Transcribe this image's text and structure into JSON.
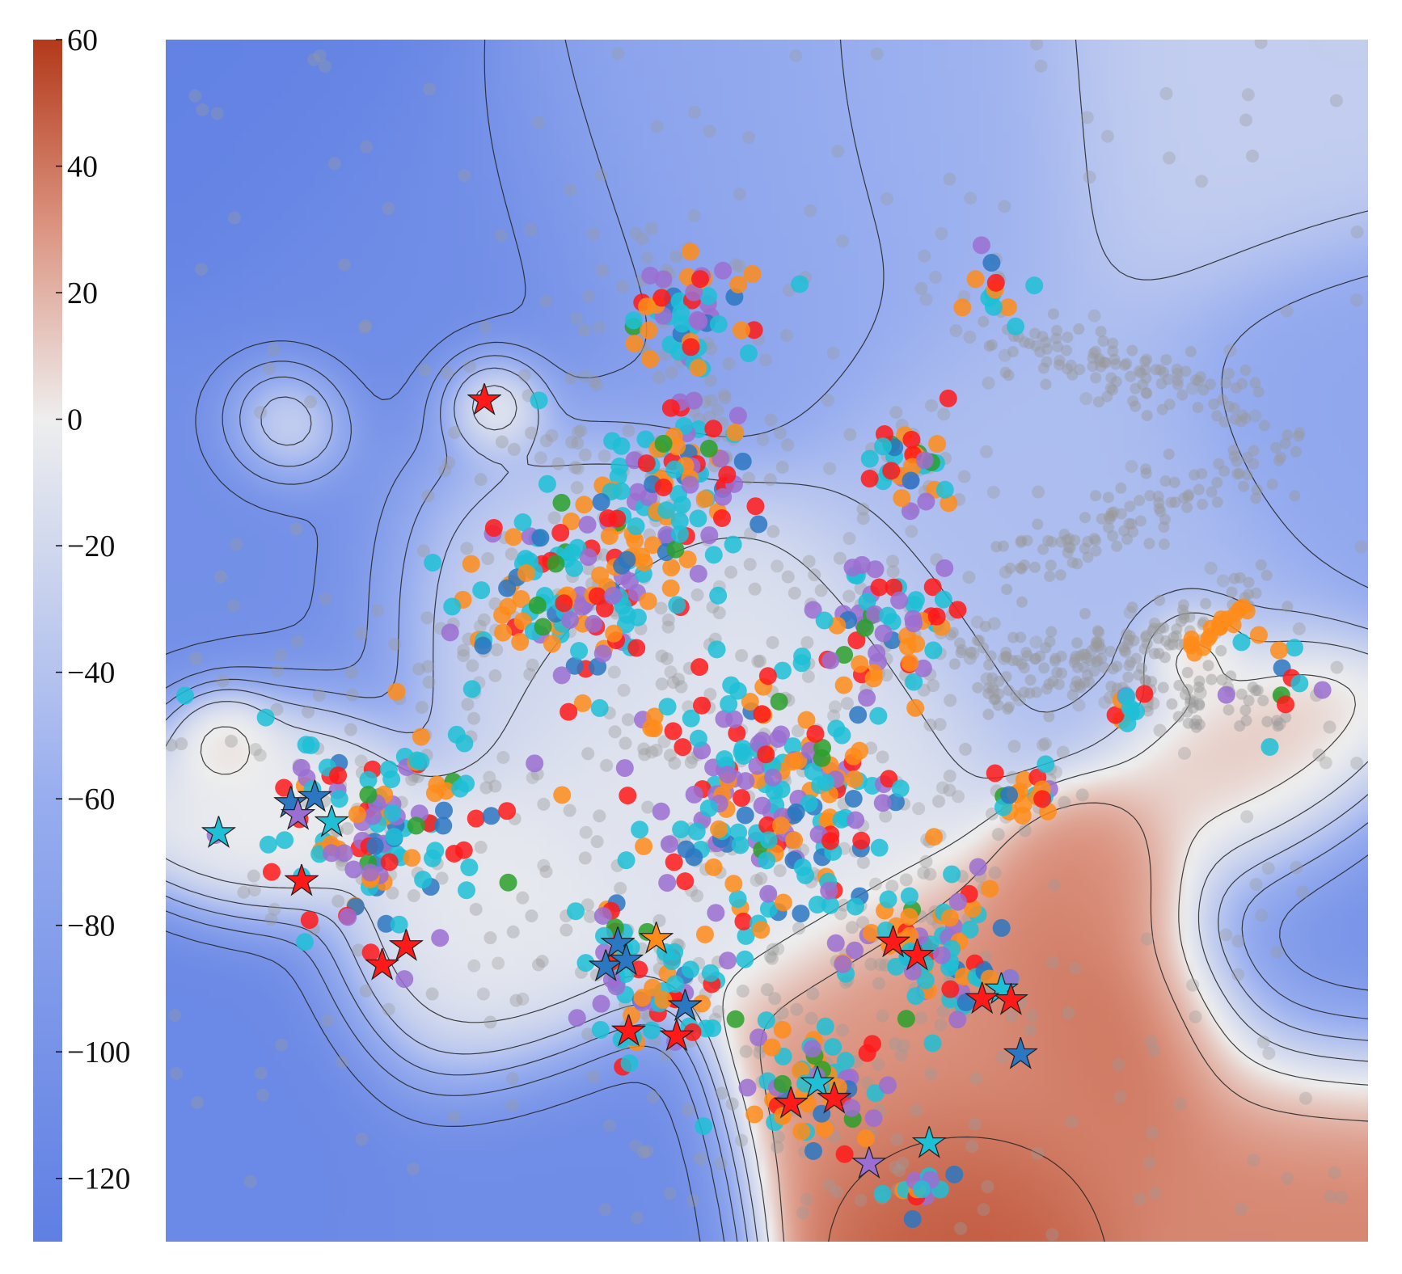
{
  "chart_data": {
    "type": "heatmap",
    "title": "",
    "xlabel": "",
    "ylabel": "",
    "colorbar": {
      "range": [
        -130,
        60
      ],
      "ticks": [
        60,
        40,
        20,
        0,
        -20,
        -40,
        -60,
        -80,
        -100,
        -120
      ],
      "tick_labels": [
        "60",
        "40",
        "20",
        "0",
        "−20",
        "−40",
        "−60",
        "−80",
        "−100",
        "−120"
      ],
      "colormap": [
        "#5f7fe3",
        "#97adef",
        "#eeeeee",
        "#dc9582",
        "#b3391a"
      ],
      "placement": "left"
    },
    "x_range": [
      0,
      100
    ],
    "y_range": [
      0,
      100
    ],
    "field_sources": [
      {
        "x": 3,
        "y": 97,
        "s": 14,
        "v": -125
      },
      {
        "x": 22,
        "y": 80,
        "s": 14,
        "v": -110
      },
      {
        "x": 6,
        "y": 60,
        "s": 12,
        "v": -105
      },
      {
        "x": 5,
        "y": 10,
        "s": 12,
        "v": -115
      },
      {
        "x": 30,
        "y": 3,
        "s": 10,
        "v": -110
      },
      {
        "x": 96,
        "y": 25,
        "s": 10,
        "v": -105
      },
      {
        "x": 97,
        "y": 70,
        "s": 10,
        "v": -70
      },
      {
        "x": 88,
        "y": 94,
        "s": 12,
        "v": -30
      },
      {
        "x": 45,
        "y": 88,
        "s": 14,
        "v": -70
      },
      {
        "x": 62,
        "y": 92,
        "s": 12,
        "v": -55
      },
      {
        "x": 75,
        "y": 60,
        "s": 14,
        "v": -45
      },
      {
        "x": 50,
        "y": 42,
        "s": 12,
        "v": -10
      },
      {
        "x": 30,
        "y": 58,
        "s": 10,
        "v": -20
      },
      {
        "x": 8,
        "y": 37,
        "s": 7,
        "v": 0
      },
      {
        "x": 25,
        "y": 23,
        "s": 8,
        "v": -5
      },
      {
        "x": 27,
        "y": 70,
        "s": 3.5,
        "v": 45
      },
      {
        "x": 10,
        "y": 68,
        "s": 4,
        "v": 30
      },
      {
        "x": 5,
        "y": 42,
        "s": 3,
        "v": 15
      },
      {
        "x": 68,
        "y": 12,
        "s": 12,
        "v": 30
      },
      {
        "x": 80,
        "y": 18,
        "s": 9,
        "v": 45
      },
      {
        "x": 95,
        "y": 8,
        "s": 10,
        "v": 35
      },
      {
        "x": 90,
        "y": 38,
        "s": 8,
        "v": 20
      },
      {
        "x": 78,
        "y": 30,
        "s": 6,
        "v": 35
      },
      {
        "x": 85,
        "y": 49,
        "s": 3,
        "v": 15
      },
      {
        "x": 67,
        "y": 3,
        "s": 8,
        "v": 55
      }
    ],
    "scatter_clusters": [
      {
        "x": 35,
        "y": 55,
        "r": 6,
        "n": 150
      },
      {
        "x": 18,
        "y": 35,
        "r": 6,
        "n": 120
      },
      {
        "x": 50,
        "y": 37,
        "r": 7,
        "n": 200
      },
      {
        "x": 43,
        "y": 64,
        "r": 4,
        "n": 70
      },
      {
        "x": 44,
        "y": 77,
        "r": 3.5,
        "n": 55
      },
      {
        "x": 59,
        "y": 51,
        "r": 4,
        "n": 60
      },
      {
        "x": 62,
        "y": 65,
        "r": 2.5,
        "n": 35
      },
      {
        "x": 64,
        "y": 24,
        "r": 4,
        "n": 70
      },
      {
        "x": 40,
        "y": 22,
        "r": 4.5,
        "n": 70
      },
      {
        "x": 54,
        "y": 14,
        "r": 4,
        "n": 55
      },
      {
        "x": 72,
        "y": 37,
        "r": 2,
        "n": 20
      },
      {
        "x": 63,
        "y": 5,
        "r": 2,
        "n": 14
      },
      {
        "x": 69,
        "y": 79,
        "r": 2,
        "n": 12
      },
      {
        "x": 80,
        "y": 45,
        "r": 1.5,
        "n": 10
      },
      {
        "x": 92,
        "y": 48,
        "r": 3,
        "n": 12
      }
    ],
    "gray_bands": [
      {
        "x0": 70,
        "y0": 56,
        "x1": 94,
        "y1": 66
      },
      {
        "x0": 68,
        "y0": 45,
        "x1": 93,
        "y1": 55
      },
      {
        "x0": 68,
        "y0": 75,
        "x1": 90,
        "y1": 70
      },
      {
        "x0": 65,
        "y0": 50,
        "x1": 92,
        "y1": 44
      }
    ],
    "series": [
      {
        "color": "#ff1a1a"
      },
      {
        "color": "#ff8c1a"
      },
      {
        "color": "#9b6fd1"
      },
      {
        "color": "#1fbfd6"
      },
      {
        "color": "#2b77c2"
      },
      {
        "color": "#2ca02c"
      }
    ],
    "stars": [
      {
        "x": 26.5,
        "y": 70,
        "color": "#ff1a1a"
      },
      {
        "x": 4.4,
        "y": 34,
        "color": "#1fbfd6"
      },
      {
        "x": 10.4,
        "y": 36.5,
        "color": "#2b77c2"
      },
      {
        "x": 12.4,
        "y": 37,
        "color": "#2b77c2"
      },
      {
        "x": 11,
        "y": 35.5,
        "color": "#9b6fd1"
      },
      {
        "x": 13.8,
        "y": 34.9,
        "color": "#1fbfd6"
      },
      {
        "x": 11.3,
        "y": 30,
        "color": "#ff1a1a"
      },
      {
        "x": 20,
        "y": 24.6,
        "color": "#ff1a1a"
      },
      {
        "x": 18,
        "y": 23,
        "color": "#ff1a1a"
      },
      {
        "x": 37.6,
        "y": 24.8,
        "color": "#2b77c2"
      },
      {
        "x": 40.8,
        "y": 25.2,
        "color": "#ff8c1a"
      },
      {
        "x": 36.6,
        "y": 22.9,
        "color": "#2b77c2"
      },
      {
        "x": 38.3,
        "y": 23.4,
        "color": "#2b77c2"
      },
      {
        "x": 43.2,
        "y": 19.6,
        "color": "#2b77c2"
      },
      {
        "x": 38.5,
        "y": 17.5,
        "color": "#ff1a1a"
      },
      {
        "x": 42.5,
        "y": 17.1,
        "color": "#ff1a1a"
      },
      {
        "x": 60.5,
        "y": 24.9,
        "color": "#ff1a1a"
      },
      {
        "x": 62.5,
        "y": 23.8,
        "color": "#ff1a1a"
      },
      {
        "x": 69.5,
        "y": 21,
        "color": "#1fbfd6"
      },
      {
        "x": 70.3,
        "y": 20.1,
        "color": "#ff1a1a"
      },
      {
        "x": 67.9,
        "y": 20.2,
        "color": "#ff1a1a"
      },
      {
        "x": 71.1,
        "y": 15.6,
        "color": "#2b77c2"
      },
      {
        "x": 54.2,
        "y": 13.2,
        "color": "#1fbfd6"
      },
      {
        "x": 55.6,
        "y": 11.9,
        "color": "#ff1a1a"
      },
      {
        "x": 52,
        "y": 11.5,
        "color": "#ff1a1a"
      },
      {
        "x": 63.5,
        "y": 8.2,
        "color": "#1fbfd6"
      },
      {
        "x": 58.5,
        "y": 6.5,
        "color": "#9b6fd1"
      }
    ]
  }
}
